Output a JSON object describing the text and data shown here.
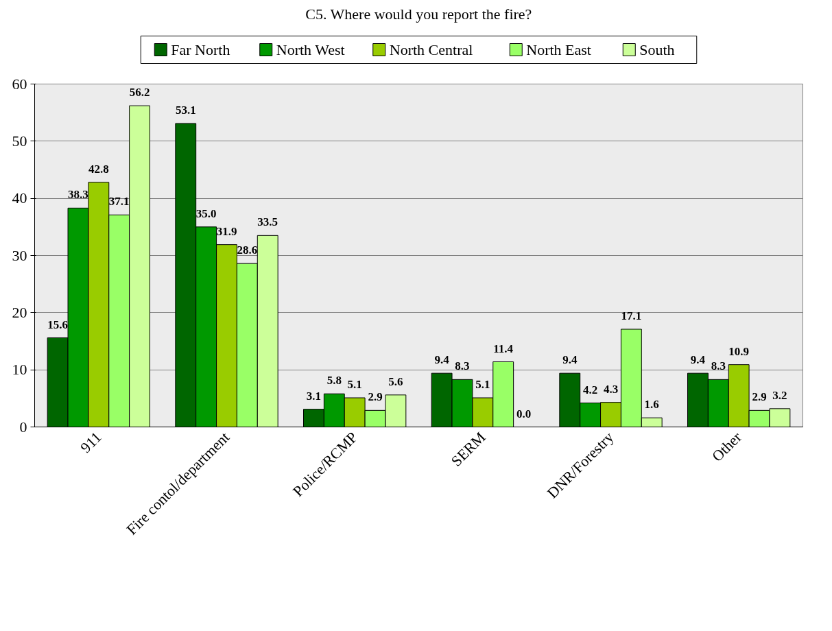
{
  "chart_data": {
    "type": "bar",
    "title": "C5. Where would you report the fire?",
    "categories": [
      "911",
      "Fire contol/department",
      "Police/RCMP",
      "SERM",
      "DNR/Forestry",
      "Other"
    ],
    "series": [
      {
        "name": "Far North",
        "color": "#006600",
        "values": [
          15.6,
          53.1,
          3.1,
          9.4,
          9.4,
          9.4
        ]
      },
      {
        "name": "North West",
        "color": "#009900",
        "values": [
          38.3,
          35.0,
          5.8,
          8.3,
          4.2,
          8.3
        ]
      },
      {
        "name": "North Central",
        "color": "#99cc00",
        "values": [
          42.8,
          31.9,
          5.1,
          5.1,
          4.3,
          10.9
        ]
      },
      {
        "name": "North East",
        "color": "#99ff66",
        "values": [
          37.1,
          28.6,
          2.9,
          11.4,
          17.1,
          2.9
        ]
      },
      {
        "name": "South",
        "color": "#ccff99",
        "values": [
          56.2,
          33.5,
          5.6,
          0.0,
          1.6,
          3.2
        ]
      }
    ],
    "value_labels": [
      [
        "15.6",
        "53.1",
        "3.1",
        "9.4",
        "9.4",
        "9.4"
      ],
      [
        "38.3",
        "35.0",
        "5.8",
        "8.3",
        "4.2",
        "8.3"
      ],
      [
        "42.8",
        "31.9",
        "5.1",
        "5.1",
        "4.3",
        "10.9"
      ],
      [
        "37.1",
        "28.6",
        "2.9",
        "11.4",
        "17.1",
        "2.9"
      ],
      [
        "56.2",
        "33.5",
        "5.6",
        "0.0",
        "1.6",
        "3.2"
      ]
    ],
    "ylim": [
      0,
      60
    ],
    "yticks": [
      0,
      10,
      20,
      30,
      40,
      50,
      60
    ],
    "grid": "y",
    "legend": "top"
  }
}
